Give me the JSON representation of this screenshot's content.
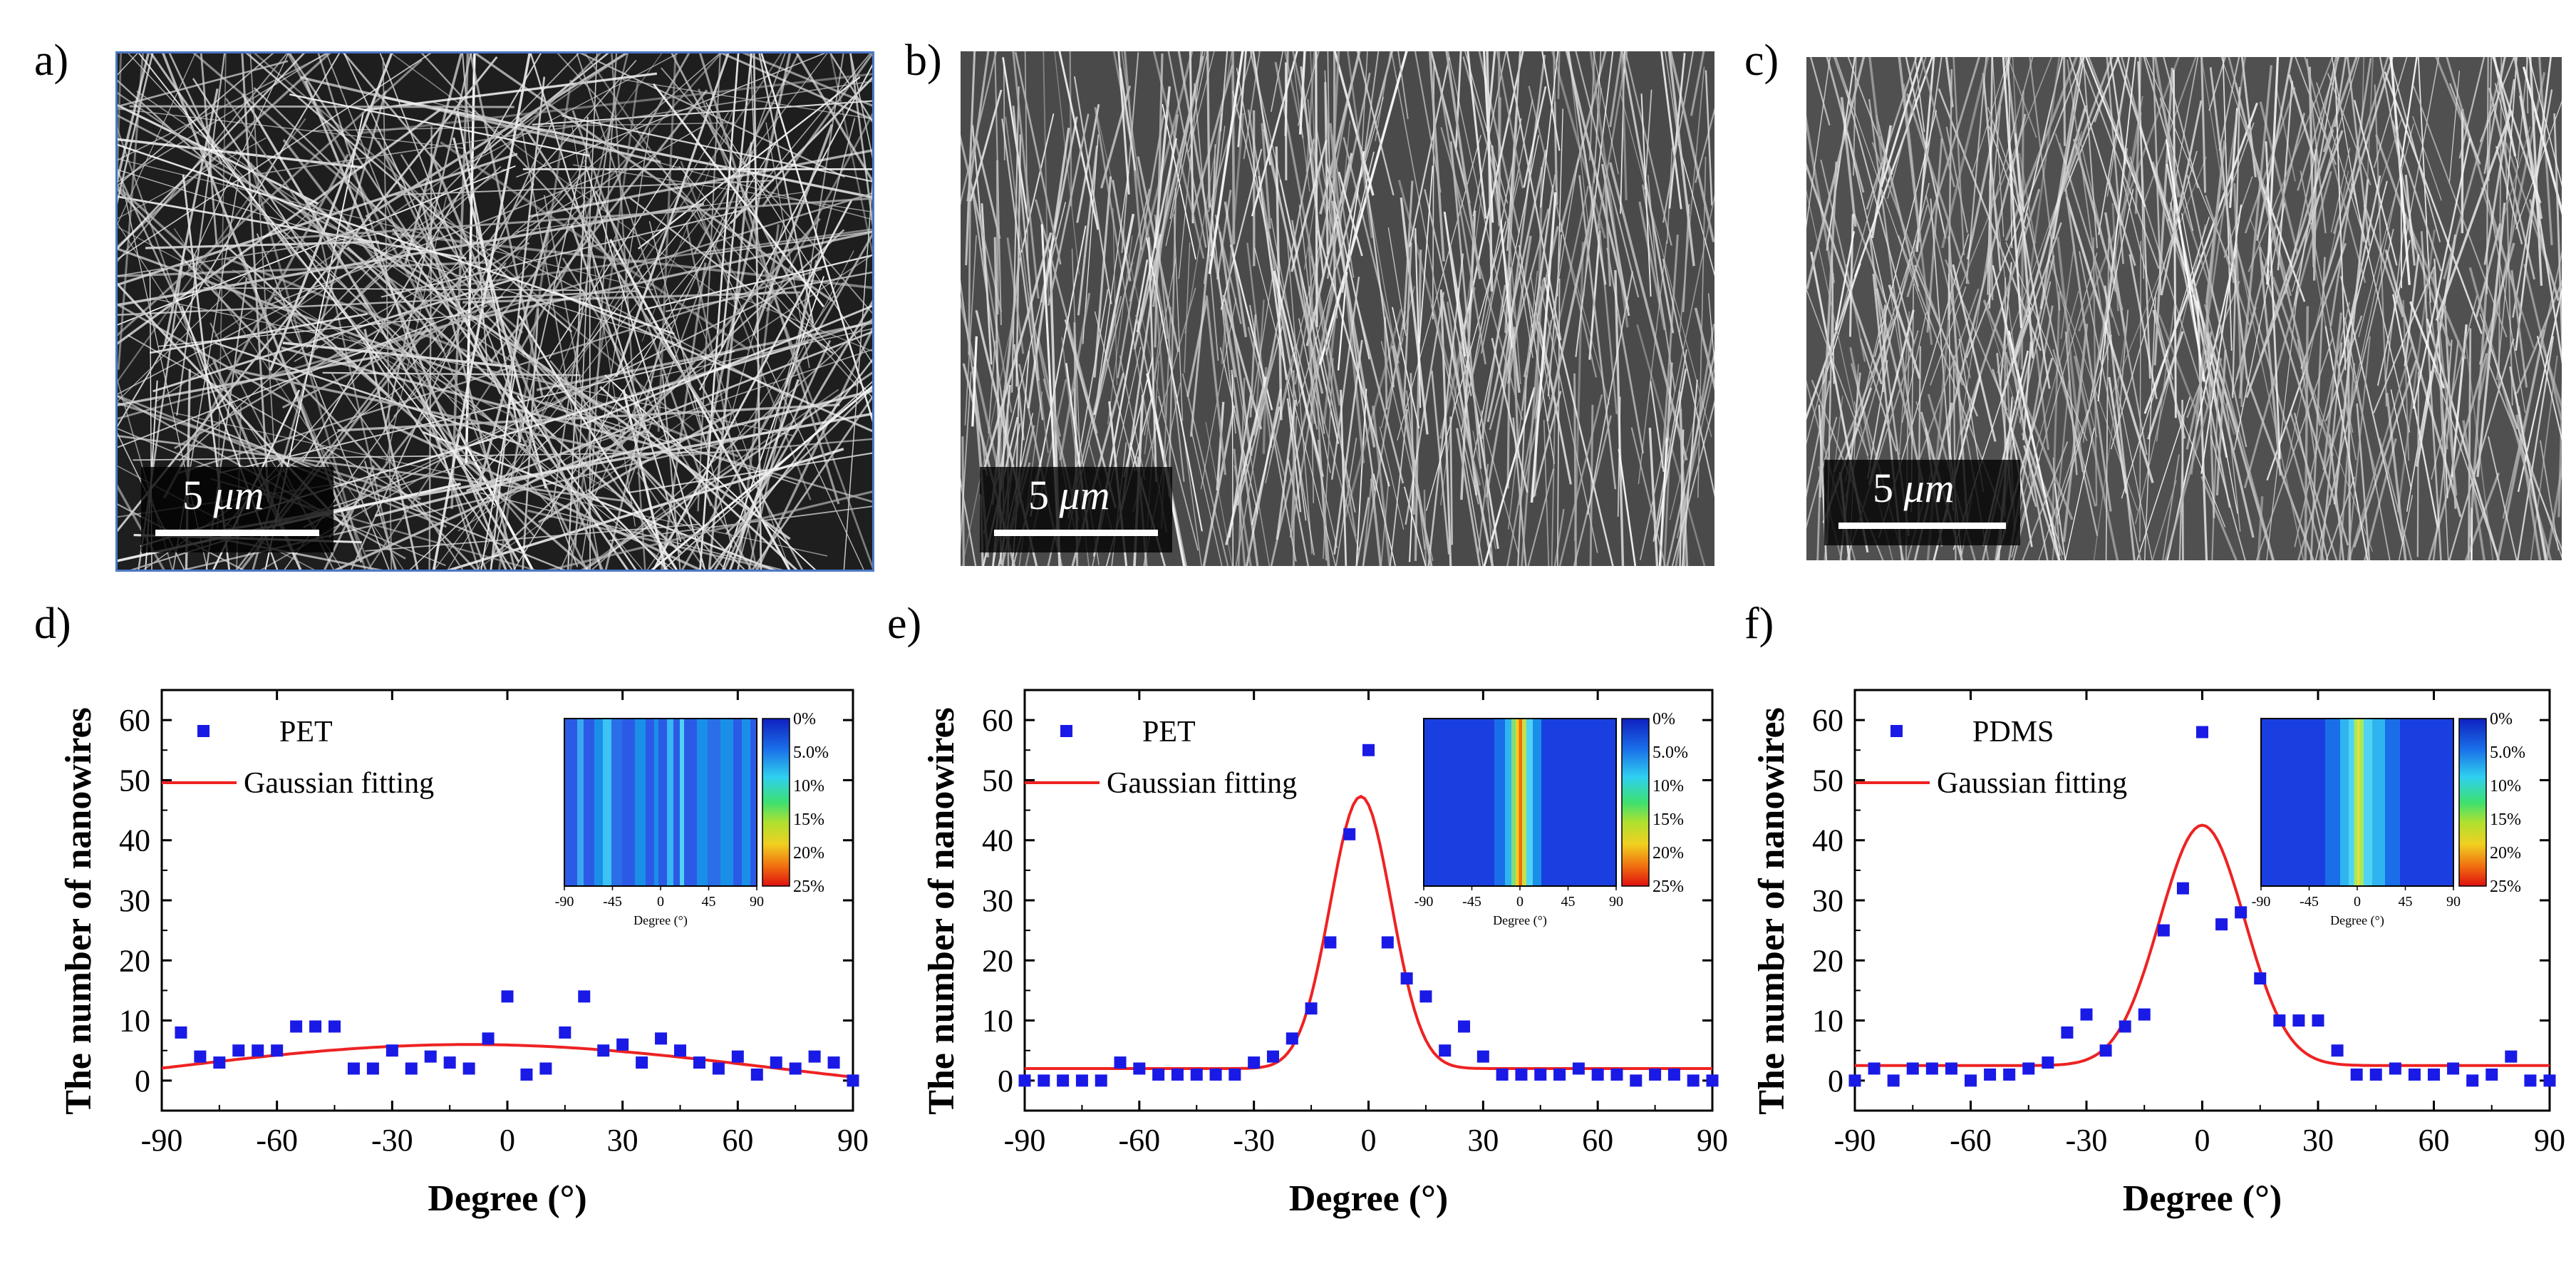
{
  "panels": {
    "a": "a)",
    "b": "b)",
    "c": "c)",
    "d": "d)",
    "e": "e)",
    "f": "f)"
  },
  "scale_bar": {
    "value": "5",
    "unit": "μm"
  },
  "inset": {
    "colorbar_labels": [
      "0%",
      "5.0%",
      "10%",
      "15%",
      "20%",
      "25%"
    ],
    "xtick_labels": [
      "-90",
      "-45",
      "0",
      "45",
      "90"
    ],
    "xlabel": "Degree (°)"
  },
  "colors": {
    "points": "#1a1ae6",
    "fit": "#ee2222",
    "frame": "#000000"
  },
  "chart_data": [
    {
      "id": "d",
      "type": "scatter",
      "ylabel": "The number of nanowires",
      "xlabel": "Degree (°)",
      "xlim": [
        -90,
        90
      ],
      "ylim": [
        -5,
        65
      ],
      "xticks": [
        -90,
        -60,
        -30,
        0,
        30,
        60,
        90
      ],
      "yticks": [
        0,
        10,
        20,
        30,
        40,
        50,
        60
      ],
      "series": [
        {
          "name": "PET",
          "kind": "points",
          "x": [
            -85,
            -80,
            -75,
            -70,
            -65,
            -60,
            -55,
            -50,
            -45,
            -40,
            -35,
            -30,
            -25,
            -20,
            -15,
            -10,
            -5,
            0,
            5,
            10,
            15,
            20,
            25,
            30,
            35,
            40,
            45,
            50,
            55,
            60,
            65,
            70,
            75,
            80,
            85,
            90
          ],
          "y": [
            8,
            4,
            3,
            5,
            5,
            5,
            9,
            9,
            9,
            2,
            2,
            5,
            2,
            4,
            3,
            2,
            7,
            14,
            1,
            2,
            8,
            14,
            5,
            6,
            3,
            7,
            5,
            3,
            2,
            4,
            1,
            3,
            2,
            4,
            3,
            0
          ]
        },
        {
          "name": "Gaussian fitting",
          "kind": "fit",
          "y0": -4,
          "A": 10,
          "xc": -10,
          "w": 160
        }
      ],
      "inset_bands": [
        {
          "x": -90,
          "c": "#2b5be6"
        },
        {
          "x": -78,
          "c": "#3aa8f0"
        },
        {
          "x": -72,
          "c": "#2b5be6"
        },
        {
          "x": -62,
          "c": "#1a8fe8"
        },
        {
          "x": -54,
          "c": "#3cc3f3"
        },
        {
          "x": -46,
          "c": "#2a6ee8"
        },
        {
          "x": -36,
          "c": "#2b5be6"
        },
        {
          "x": -24,
          "c": "#1a8fe8"
        },
        {
          "x": -14,
          "c": "#2b5be6"
        },
        {
          "x": -6,
          "c": "#1a8fe8"
        },
        {
          "x": -2,
          "c": "#2b5be6"
        },
        {
          "x": 6,
          "c": "#36b6f2"
        },
        {
          "x": 12,
          "c": "#2b5be6"
        },
        {
          "x": 18,
          "c": "#4fd3f5"
        },
        {
          "x": 22,
          "c": "#2b5be6"
        },
        {
          "x": 34,
          "c": "#1a8fe8"
        },
        {
          "x": 44,
          "c": "#2a6ee8"
        },
        {
          "x": 56,
          "c": "#1a8fe8"
        },
        {
          "x": 68,
          "c": "#2b5be6"
        },
        {
          "x": 76,
          "c": "#1a8fe8"
        },
        {
          "x": 84,
          "c": "#2b5be6"
        }
      ]
    },
    {
      "id": "e",
      "type": "scatter",
      "ylabel": "The number of nanowires",
      "xlabel": "Degree (°)",
      "xlim": [
        -90,
        90
      ],
      "ylim": [
        -5,
        65
      ],
      "xticks": [
        -90,
        -60,
        -30,
        0,
        30,
        60,
        90
      ],
      "yticks": [
        0,
        10,
        20,
        30,
        40,
        50,
        60
      ],
      "series": [
        {
          "name": "PET",
          "kind": "points",
          "x": [
            -90,
            -85,
            -80,
            -75,
            -70,
            -65,
            -60,
            -55,
            -50,
            -45,
            -40,
            -35,
            -30,
            -25,
            -20,
            -15,
            -10,
            -5,
            0,
            5,
            10,
            15,
            20,
            25,
            30,
            35,
            40,
            45,
            50,
            55,
            60,
            65,
            70,
            75,
            80,
            85,
            90
          ],
          "y": [
            0,
            0,
            0,
            0,
            0,
            3,
            2,
            1,
            1,
            1,
            1,
            1,
            3,
            4,
            7,
            12,
            23,
            41,
            55,
            23,
            17,
            14,
            5,
            9,
            4,
            1,
            1,
            1,
            1,
            2,
            1,
            1,
            0,
            1,
            1,
            0,
            0
          ]
        },
        {
          "name": "Gaussian fitting",
          "kind": "fit",
          "y0": 2,
          "A": 45.3,
          "xc": -2,
          "w": 16
        }
      ],
      "inset_bands": [
        {
          "x": -90,
          "c": "#1a3fe0"
        },
        {
          "x": -24,
          "c": "#1a6ee8"
        },
        {
          "x": -14,
          "c": "#2fb4f0"
        },
        {
          "x": -8,
          "c": "#7ce07a"
        },
        {
          "x": -4,
          "c": "#f0d020"
        },
        {
          "x": -1,
          "c": "#f06a10"
        },
        {
          "x": 2,
          "c": "#c8e040"
        },
        {
          "x": 6,
          "c": "#4fd3f5"
        },
        {
          "x": 12,
          "c": "#1a8fe8"
        },
        {
          "x": 20,
          "c": "#1a3fe0"
        }
      ]
    },
    {
      "id": "f",
      "type": "scatter",
      "ylabel": "The number of nanowires",
      "xlabel": "Degree (°)",
      "xlim": [
        -90,
        90
      ],
      "ylim": [
        -5,
        65
      ],
      "xticks": [
        -90,
        -60,
        -30,
        0,
        30,
        60,
        90
      ],
      "yticks": [
        0,
        10,
        20,
        30,
        40,
        50,
        60
      ],
      "series": [
        {
          "name": "PDMS",
          "kind": "points",
          "x": [
            -90,
            -85,
            -80,
            -75,
            -70,
            -65,
            -60,
            -55,
            -50,
            -45,
            -40,
            -35,
            -30,
            -25,
            -20,
            -15,
            -10,
            -5,
            0,
            5,
            10,
            15,
            20,
            25,
            30,
            35,
            40,
            45,
            50,
            55,
            60,
            65,
            70,
            75,
            80,
            85,
            90
          ],
          "y": [
            0,
            2,
            0,
            2,
            2,
            2,
            0,
            1,
            1,
            2,
            3,
            8,
            11,
            5,
            9,
            11,
            25,
            32,
            58,
            26,
            28,
            17,
            10,
            10,
            10,
            5,
            1,
            1,
            2,
            1,
            1,
            2,
            0,
            1,
            4,
            0,
            0
          ]
        },
        {
          "name": "Gaussian fitting",
          "kind": "fit",
          "y0": 2.5,
          "A": 40,
          "xc": 0,
          "w": 22
        }
      ],
      "inset_bands": [
        {
          "x": -90,
          "c": "#1a3fe0"
        },
        {
          "x": -30,
          "c": "#1a6ee8"
        },
        {
          "x": -16,
          "c": "#2fb4f0"
        },
        {
          "x": -8,
          "c": "#4fd3f5"
        },
        {
          "x": -3,
          "c": "#a8e860"
        },
        {
          "x": 0,
          "c": "#f0e030"
        },
        {
          "x": 2,
          "c": "#a8e860"
        },
        {
          "x": 6,
          "c": "#4fd3f5"
        },
        {
          "x": 14,
          "c": "#2fb4f0"
        },
        {
          "x": 26,
          "c": "#1a6ee8"
        },
        {
          "x": 40,
          "c": "#1a3fe0"
        }
      ]
    }
  ]
}
